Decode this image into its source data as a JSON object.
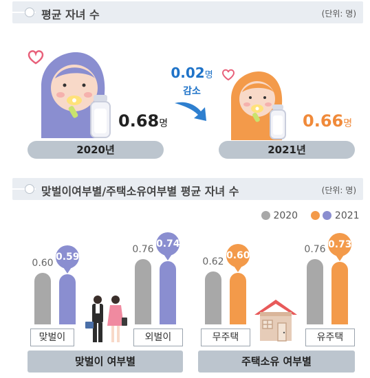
{
  "section1": {
    "title": "평균 자녀 수",
    "unit": "(단위: 명)"
  },
  "section2": {
    "title": "맞벌이여부별/주택소유여부별 평균 자녀 수",
    "unit": "(단위: 명)"
  },
  "summary": {
    "year_2020": "2020년",
    "year_2021": "2021년",
    "value_2020": "0.68",
    "value_2021": "0.66",
    "unit": "명",
    "decrease_value": "0.02",
    "decrease_label": "감소"
  },
  "legend": {
    "label_2020": "2020",
    "label_2021": "2021"
  },
  "colors": {
    "gray": "#a8a8a8",
    "orange": "#f39a4a",
    "purple": "#8a8ed0",
    "blue": "#1f73c8",
    "pill": "#bcc5ce"
  },
  "icons": [
    "heart-icon",
    "baby-icon",
    "baby-bottle-icon",
    "pacifier-icon",
    "arrow-icon",
    "couple-icon",
    "house-icon"
  ],
  "chart_data": [
    {
      "type": "bar",
      "title": "맞벌이 여부별",
      "categories": [
        "맞벌이",
        "외벌이"
      ],
      "series": [
        {
          "name": "2020",
          "values": [
            0.6,
            0.76
          ]
        },
        {
          "name": "2021",
          "values": [
            0.59,
            0.74
          ]
        }
      ],
      "ylim": [
        0,
        0.9
      ],
      "labels": {
        "c0_2020": "0.60",
        "c0_2021": "0.59",
        "c1_2020": "0.76",
        "c1_2021": "0.74"
      },
      "legend": "top-right"
    },
    {
      "type": "bar",
      "title": "주택소유 여부별",
      "categories": [
        "무주택",
        "유주택"
      ],
      "series": [
        {
          "name": "2020",
          "values": [
            0.62,
            0.76
          ]
        },
        {
          "name": "2021",
          "values": [
            0.6,
            0.73
          ]
        }
      ],
      "ylim": [
        0,
        0.9
      ],
      "labels": {
        "c0_2020": "0.62",
        "c0_2021": "0.60",
        "c1_2020": "0.76",
        "c1_2021": "0.73"
      },
      "legend": "top-right"
    }
  ]
}
